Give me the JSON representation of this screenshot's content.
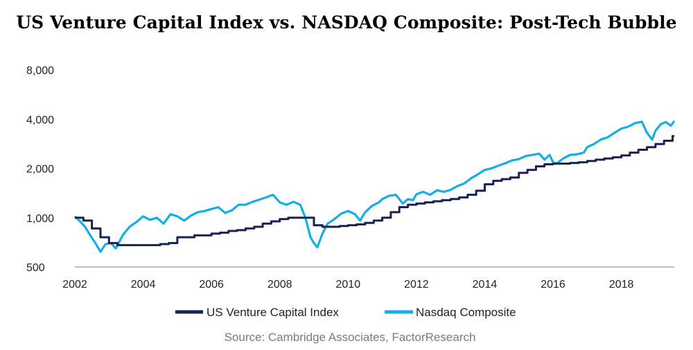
{
  "source": "Source: Cambridge Associates, FactorResearch",
  "chart_data": {
    "type": "line",
    "title": "US Venture Capital Index vs. NASDAQ Composite: Post-Tech Bubble",
    "xlabel": "",
    "ylabel": "",
    "y_scale": "log",
    "ylim": [
      500,
      8000
    ],
    "xlim": [
      2002.0,
      2019.55
    ],
    "y_ticks": [
      500,
      1000,
      2000,
      4000,
      8000
    ],
    "y_tick_labels": [
      "500",
      "1,000",
      "2,000",
      "4,000",
      "8,000"
    ],
    "x_ticks": [
      2002,
      2004,
      2006,
      2008,
      2010,
      2012,
      2014,
      2016,
      2018
    ],
    "x_tick_labels": [
      "2002",
      "2004",
      "2006",
      "2008",
      "2010",
      "2012",
      "2014",
      "2016",
      "2018"
    ],
    "grid": false,
    "legend_position": "bottom",
    "colors": {
      "vc": "#172154",
      "nasdaq": "#14aee6"
    },
    "series": [
      {
        "name": "US Venture Capital Index",
        "step": true,
        "x": [
          2002.0,
          2002.25,
          2002.5,
          2002.75,
          2003.0,
          2003.25,
          2003.5,
          2003.75,
          2004.0,
          2004.25,
          2004.5,
          2004.75,
          2005.0,
          2005.25,
          2005.5,
          2005.75,
          2006.0,
          2006.25,
          2006.5,
          2006.75,
          2007.0,
          2007.25,
          2007.5,
          2007.75,
          2008.0,
          2008.25,
          2008.5,
          2008.75,
          2009.0,
          2009.25,
          2009.5,
          2009.75,
          2010.0,
          2010.25,
          2010.5,
          2010.75,
          2011.0,
          2011.25,
          2011.5,
          2011.75,
          2012.0,
          2012.25,
          2012.5,
          2012.75,
          2013.0,
          2013.25,
          2013.5,
          2013.75,
          2014.0,
          2014.25,
          2014.5,
          2014.75,
          2015.0,
          2015.25,
          2015.5,
          2015.75,
          2016.0,
          2016.25,
          2016.5,
          2016.75,
          2017.0,
          2017.25,
          2017.5,
          2017.75,
          2018.0,
          2018.25,
          2018.5,
          2018.75,
          2019.0,
          2019.25,
          2019.5
        ],
        "values": [
          1000,
          960,
          860,
          760,
          700,
          680,
          680,
          680,
          680,
          680,
          690,
          700,
          760,
          760,
          780,
          780,
          800,
          810,
          830,
          840,
          860,
          880,
          920,
          950,
          980,
          1000,
          1000,
          1000,
          900,
          880,
          880,
          890,
          900,
          910,
          930,
          960,
          1000,
          1080,
          1160,
          1200,
          1220,
          1240,
          1260,
          1280,
          1300,
          1330,
          1380,
          1460,
          1600,
          1680,
          1720,
          1760,
          1880,
          1960,
          2060,
          2120,
          2140,
          2140,
          2160,
          2180,
          2220,
          2260,
          2300,
          2340,
          2400,
          2500,
          2600,
          2700,
          2820,
          2950,
          3150
        ]
      },
      {
        "name": "Nasdaq Composite",
        "step": false,
        "x": [
          2002.0,
          2002.15,
          2002.3,
          2002.45,
          2002.6,
          2002.75,
          2002.9,
          2003.05,
          2003.2,
          2003.4,
          2003.6,
          2003.8,
          2004.0,
          2004.2,
          2004.4,
          2004.6,
          2004.8,
          2005.0,
          2005.2,
          2005.4,
          2005.6,
          2005.8,
          2006.0,
          2006.2,
          2006.4,
          2006.6,
          2006.8,
          2007.0,
          2007.2,
          2007.4,
          2007.6,
          2007.8,
          2008.0,
          2008.2,
          2008.4,
          2008.6,
          2008.75,
          2008.9,
          2009.0,
          2009.1,
          2009.25,
          2009.4,
          2009.6,
          2009.8,
          2010.0,
          2010.2,
          2010.35,
          2010.5,
          2010.7,
          2010.9,
          2011.0,
          2011.2,
          2011.4,
          2011.6,
          2011.75,
          2011.9,
          2012.0,
          2012.2,
          2012.4,
          2012.6,
          2012.8,
          2013.0,
          2013.2,
          2013.4,
          2013.6,
          2013.8,
          2014.0,
          2014.2,
          2014.4,
          2014.6,
          2014.8,
          2015.0,
          2015.2,
          2015.4,
          2015.6,
          2015.75,
          2015.9,
          2016.0,
          2016.1,
          2016.3,
          2016.5,
          2016.7,
          2016.9,
          2017.0,
          2017.2,
          2017.4,
          2017.6,
          2017.8,
          2018.0,
          2018.2,
          2018.4,
          2018.6,
          2018.75,
          2018.9,
          2019.0,
          2019.15,
          2019.3,
          2019.45,
          2019.55
        ],
        "values": [
          1020,
          950,
          880,
          780,
          700,
          620,
          690,
          700,
          650,
          780,
          880,
          940,
          1020,
          970,
          1000,
          920,
          1050,
          1020,
          960,
          1030,
          1080,
          1100,
          1130,
          1160,
          1070,
          1110,
          1200,
          1200,
          1250,
          1290,
          1330,
          1380,
          1240,
          1200,
          1250,
          1200,
          1000,
          760,
          700,
          660,
          800,
          920,
          980,
          1060,
          1100,
          1050,
          960,
          1080,
          1180,
          1240,
          1300,
          1360,
          1380,
          1220,
          1300,
          1280,
          1390,
          1440,
          1380,
          1470,
          1440,
          1480,
          1560,
          1620,
          1740,
          1840,
          1960,
          2000,
          2080,
          2150,
          2240,
          2280,
          2380,
          2420,
          2460,
          2260,
          2420,
          2180,
          2140,
          2300,
          2420,
          2440,
          2500,
          2700,
          2820,
          3000,
          3100,
          3300,
          3500,
          3600,
          3780,
          3860,
          3300,
          3000,
          3400,
          3720,
          3840,
          3650,
          3900
        ]
      }
    ]
  }
}
